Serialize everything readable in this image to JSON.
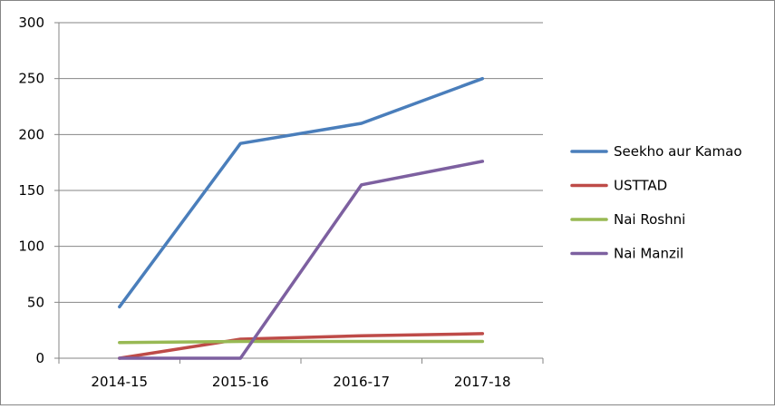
{
  "chart_data": {
    "type": "line",
    "title": "",
    "xlabel": "",
    "ylabel": "",
    "categories": [
      "2014-15",
      "2015-16",
      "2016-17",
      "2017-18"
    ],
    "ylim": [
      0,
      300
    ],
    "yticks": [
      0,
      50,
      100,
      150,
      200,
      250,
      300
    ],
    "grid": true,
    "legend_position": "right",
    "series": [
      {
        "name": "Seekho aur Kamao",
        "color": "#4a7ebb",
        "values": [
          46,
          192,
          210,
          250
        ]
      },
      {
        "name": "USTTAD",
        "color": "#be4b48",
        "values": [
          0,
          17,
          20,
          22
        ]
      },
      {
        "name": "Nai Roshni",
        "color": "#98b954",
        "values": [
          14,
          15,
          15,
          15
        ]
      },
      {
        "name": "Nai Manzil",
        "color": "#7d60a0",
        "values": [
          0,
          0,
          155,
          176
        ]
      }
    ]
  }
}
